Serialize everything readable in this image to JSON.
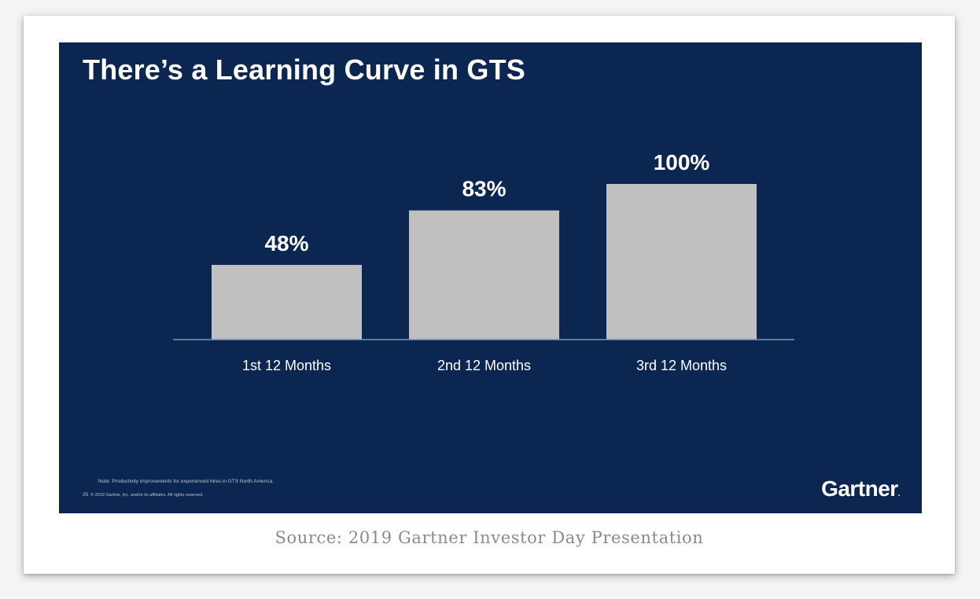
{
  "slide": {
    "title": "There’s a Learning Curve in GTS",
    "note": "Note: Productivity improvements for experienced hires in GTS North America.",
    "page_number": "25",
    "copyright": "© 2019 Gartner, Inc. and/or its affiliates. All rights reserved.",
    "logo_text": "Gartner",
    "logo_mark": "."
  },
  "caption": "Source: 2019 Gartner Investor Day Presentation",
  "colors": {
    "slide_background": "#0b2650",
    "bar": "#c0c0c0",
    "text": "#ffffff",
    "caption": "#8a8a8a"
  },
  "chart_data": {
    "type": "bar",
    "title": "There’s a Learning Curve in GTS",
    "categories": [
      "1st 12 Months",
      "2nd 12 Months",
      "3rd 12 Months"
    ],
    "values": [
      48,
      83,
      100
    ],
    "data_labels": [
      "48%",
      "83%",
      "100%"
    ],
    "ylim": [
      0,
      100
    ],
    "grid": false,
    "legend": "none"
  }
}
